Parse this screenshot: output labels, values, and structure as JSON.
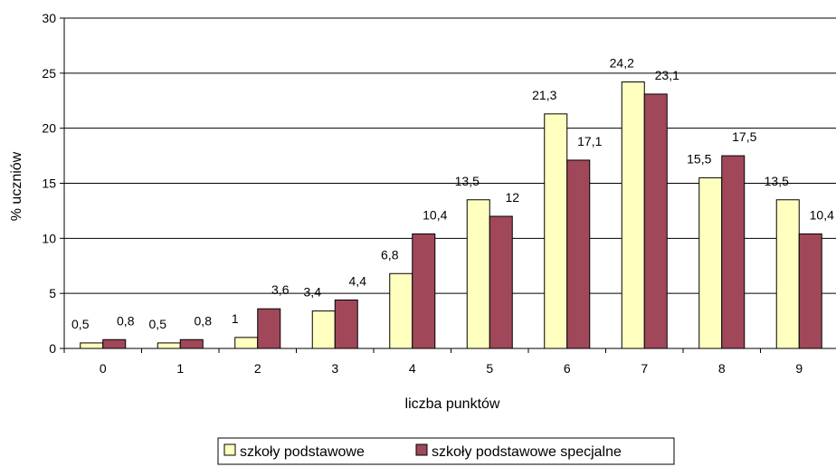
{
  "chart_data": {
    "type": "bar",
    "categories": [
      "0",
      "1",
      "2",
      "3",
      "4",
      "5",
      "6",
      "7",
      "8",
      "9"
    ],
    "series": [
      {
        "name": "szkoły podstawowe",
        "color": "#ffffc0",
        "values": [
          0.5,
          0.5,
          1,
          3.4,
          6.8,
          13.5,
          21.3,
          24.2,
          15.5,
          13.5
        ],
        "labels": [
          "0,5",
          "0,5",
          "1",
          "3,4",
          "6,8",
          "13,5",
          "21,3",
          "24,2",
          "15,5",
          "13,5"
        ]
      },
      {
        "name": "szkoły podstawowe specjalne",
        "color": "#a0485a",
        "values": [
          0.8,
          0.8,
          3.6,
          4.4,
          10.4,
          12,
          17.1,
          23.1,
          17.5,
          10.4
        ],
        "labels": [
          "0,8",
          "0,8",
          "3,6",
          "4,4",
          "10,4",
          "12",
          "17,1",
          "23,1",
          "17,5",
          "10,4"
        ]
      }
    ],
    "xlabel": "liczba punktów",
    "ylabel": "% uczniów",
    "ylim": [
      0,
      30
    ],
    "yticks": [
      0,
      5,
      10,
      15,
      20,
      25,
      30
    ],
    "grid": true,
    "legend_position": "bottom"
  }
}
